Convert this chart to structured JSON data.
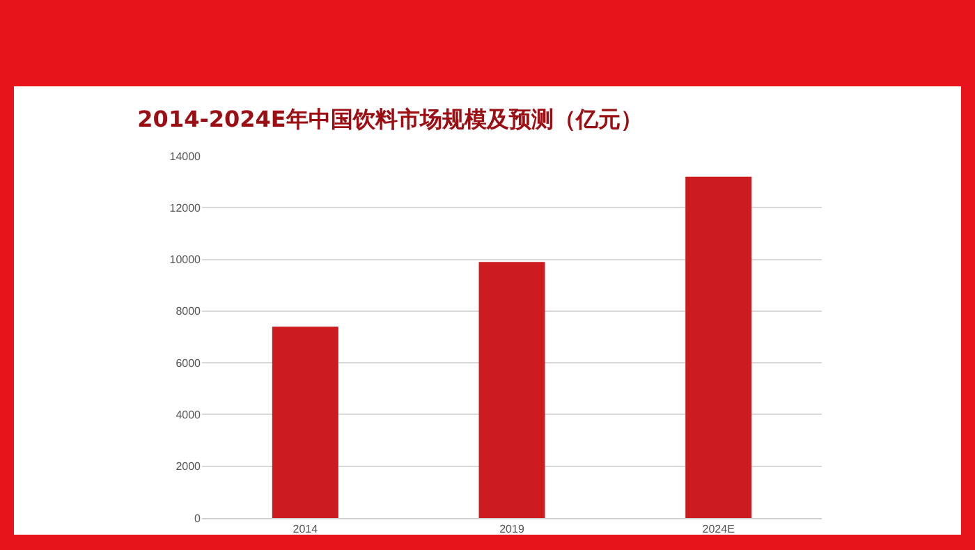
{
  "chart_data": {
    "type": "bar",
    "title": "2014-2024E年中国饮料市场规模及预测（亿元）",
    "categories": [
      "2014",
      "2019",
      "2024E"
    ],
    "values": [
      7400,
      9900,
      13200
    ],
    "color": "#cc1c20",
    "ylim": [
      0,
      14000
    ],
    "yticks": [
      0,
      2000,
      4000,
      6000,
      8000,
      10000,
      12000,
      14000
    ],
    "grid": "y"
  }
}
